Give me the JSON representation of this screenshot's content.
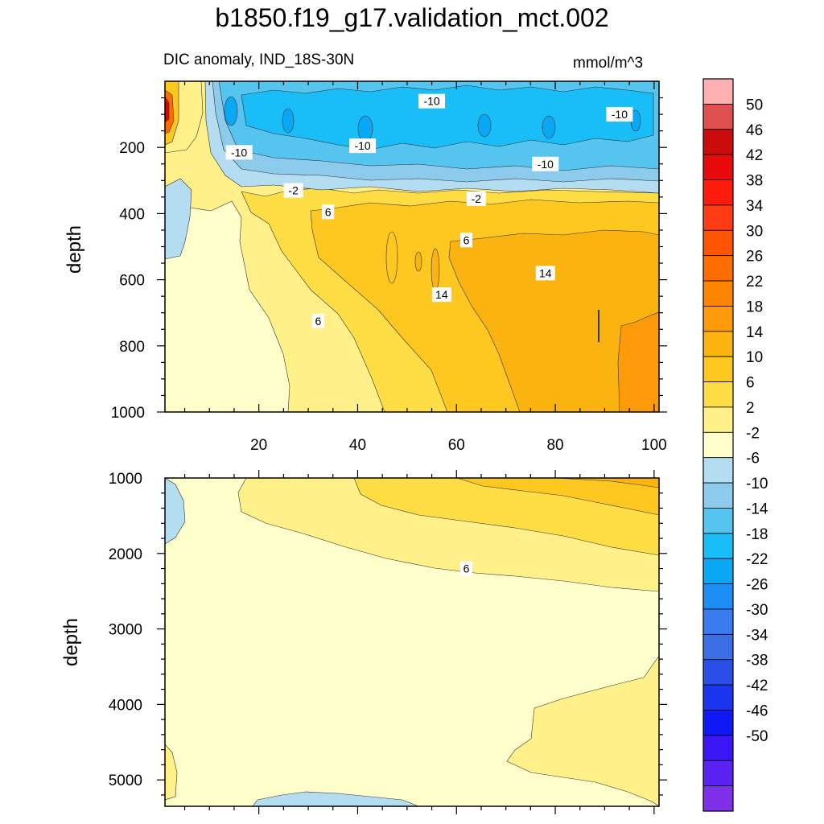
{
  "title": "b1850.f19_g17.validation_mct.002",
  "subtitle": "DIC anomaly, IND_18S-30N",
  "units": "mmol/m^3",
  "chart_data": [
    {
      "type": "heatmap",
      "panel": "upper",
      "ylabel": "depth",
      "xlim": [
        1,
        101
      ],
      "ylim": [
        0,
        1000
      ],
      "y_inverted": true,
      "xticks": [
        20,
        40,
        60,
        80,
        100
      ],
      "yticks": [
        200,
        400,
        600,
        800,
        1000
      ],
      "contour_labels": [
        {
          "text": "-10",
          "x": 55,
          "y": 60
        },
        {
          "text": "-10",
          "x": 93,
          "y": 100
        },
        {
          "text": "-10",
          "x": 16,
          "y": 215
        },
        {
          "text": "-10",
          "x": 41,
          "y": 195
        },
        {
          "text": "-10",
          "x": 78,
          "y": 250
        },
        {
          "text": "-2",
          "x": 27,
          "y": 330
        },
        {
          "text": "-2",
          "x": 64,
          "y": 355
        },
        {
          "text": "6",
          "x": 34,
          "y": 395
        },
        {
          "text": "6",
          "x": 62,
          "y": 480
        },
        {
          "text": "14",
          "x": 78,
          "y": 580
        },
        {
          "text": "14",
          "x": 57,
          "y": 645
        },
        {
          "text": "6",
          "x": 32,
          "y": 725
        }
      ]
    },
    {
      "type": "heatmap",
      "panel": "lower",
      "ylabel": "depth",
      "xlim": [
        1,
        101
      ],
      "ylim": [
        1000,
        5350
      ],
      "y_inverted": true,
      "yticks": [
        1000,
        2000,
        3000,
        4000,
        5000
      ],
      "contour_labels": [
        {
          "text": "6",
          "x": 62,
          "y": 2200
        }
      ]
    }
  ],
  "colorbar": {
    "colors": [
      "#7e2fe8",
      "#5b22f4",
      "#3c17f6",
      "#0e19f6",
      "#1b34ee",
      "#2c4ee8",
      "#3c6fe6",
      "#3a7cf0",
      "#1d8ef6",
      "#0aa8f4",
      "#19bdf7",
      "#55c4ef",
      "#8ccbec",
      "#b5ddf2",
      "#ffffcc",
      "#fff08a",
      "#ffdd44",
      "#ffc820",
      "#fbb40f",
      "#ff9b0a",
      "#ff8500",
      "#ff6d00",
      "#ff5500",
      "#ff3c14",
      "#ff1c0c",
      "#e80a0a",
      "#cc0c0c",
      "#e05050",
      "#ffb0b0"
    ],
    "labels": [
      "-50",
      "-46",
      "-42",
      "-38",
      "-34",
      "-30",
      "-26",
      "-22",
      "-18",
      "-14",
      "-10",
      "-6",
      "-2",
      "2",
      "6",
      "10",
      "14",
      "18",
      "22",
      "26",
      "30",
      "34",
      "38",
      "42",
      "46",
      "50"
    ]
  }
}
